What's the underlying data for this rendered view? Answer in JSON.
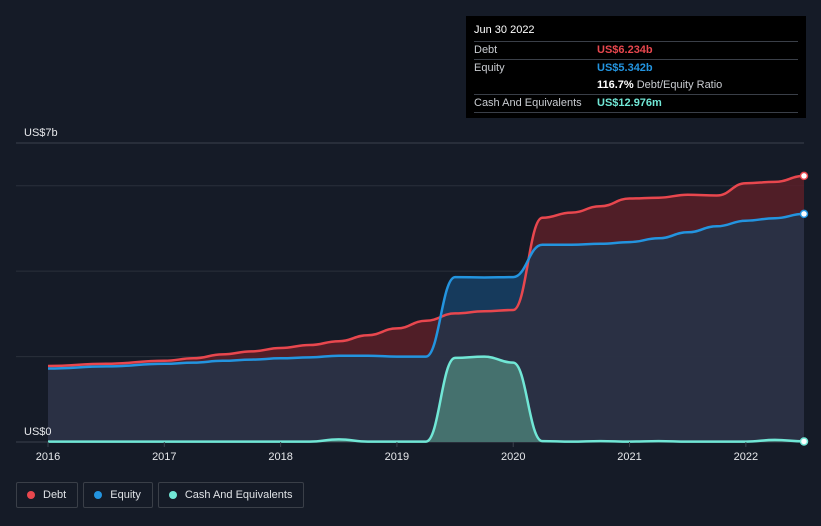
{
  "tooltip": {
    "date": "Jun 30 2022",
    "rows": [
      {
        "label": "Debt",
        "value": "US$6.234b",
        "color": "#e8474e"
      },
      {
        "label": "Equity",
        "value": "US$5.342b",
        "color": "#2394df"
      },
      {
        "label": "",
        "value": "116.7%",
        "suffix": "Debt/Equity Ratio",
        "color": "#ffffff"
      },
      {
        "label": "Cash And Equivalents",
        "value": "US$12.976m",
        "color": "#71e7d6"
      }
    ]
  },
  "legend": [
    {
      "label": "Debt",
      "color": "#e8474e"
    },
    {
      "label": "Equity",
      "color": "#2394df"
    },
    {
      "label": "Cash And Equivalents",
      "color": "#71e7d6"
    }
  ],
  "chart_data": {
    "type": "area",
    "y_top_label": "US$7b",
    "y_bottom_label": "US$0",
    "ylim": [
      0,
      7
    ],
    "xlim": [
      2016.0,
      2022.5
    ],
    "x_ticks": [
      "2016",
      "2017",
      "2018",
      "2019",
      "2020",
      "2021",
      "2022"
    ],
    "gridlines_y": [
      2,
      4,
      6
    ],
    "series": [
      {
        "name": "Debt",
        "color": "#e8474e",
        "x": [
          2016.0,
          2016.5,
          2017.0,
          2017.25,
          2017.5,
          2017.75,
          2018.0,
          2018.25,
          2018.5,
          2018.75,
          2019.0,
          2019.25,
          2019.5,
          2019.75,
          2020.0,
          2020.25,
          2020.5,
          2020.75,
          2021.0,
          2021.25,
          2021.5,
          2021.75,
          2022.0,
          2022.25,
          2022.5
        ],
        "y": [
          1.78,
          1.83,
          1.9,
          1.96,
          2.05,
          2.12,
          2.2,
          2.27,
          2.36,
          2.5,
          2.66,
          2.84,
          3.01,
          3.06,
          3.09,
          5.25,
          5.37,
          5.52,
          5.7,
          5.72,
          5.79,
          5.77,
          6.06,
          6.09,
          6.23
        ]
      },
      {
        "name": "Equity",
        "color": "#2394df",
        "x": [
          2016.0,
          2016.5,
          2017.0,
          2017.25,
          2017.5,
          2017.75,
          2018.0,
          2018.25,
          2018.5,
          2018.75,
          2019.0,
          2019.25,
          2019.5,
          2019.75,
          2020.0,
          2020.25,
          2020.5,
          2020.75,
          2021.0,
          2021.25,
          2021.5,
          2021.75,
          2022.0,
          2022.25,
          2022.5
        ],
        "y": [
          1.72,
          1.77,
          1.83,
          1.86,
          1.9,
          1.93,
          1.96,
          1.98,
          2.02,
          2.02,
          2.0,
          2.0,
          3.86,
          3.85,
          3.86,
          4.62,
          4.62,
          4.64,
          4.68,
          4.77,
          4.91,
          5.05,
          5.18,
          5.24,
          5.34
        ]
      },
      {
        "name": "Cash And Equivalents",
        "color": "#71e7d6",
        "x": [
          2016.0,
          2016.5,
          2017.0,
          2017.5,
          2018.0,
          2018.25,
          2018.5,
          2018.75,
          2019.0,
          2019.25,
          2019.5,
          2019.75,
          2020.0,
          2020.25,
          2020.5,
          2020.75,
          2021.0,
          2021.25,
          2021.5,
          2021.75,
          2022.0,
          2022.25,
          2022.5
        ],
        "y": [
          0.01,
          0.01,
          0.01,
          0.01,
          0.01,
          0.01,
          0.06,
          0.01,
          0.01,
          0.01,
          1.97,
          2.0,
          1.86,
          0.02,
          0.01,
          0.02,
          0.01,
          0.02,
          0.01,
          0.01,
          0.01,
          0.05,
          0.013
        ]
      }
    ]
  }
}
